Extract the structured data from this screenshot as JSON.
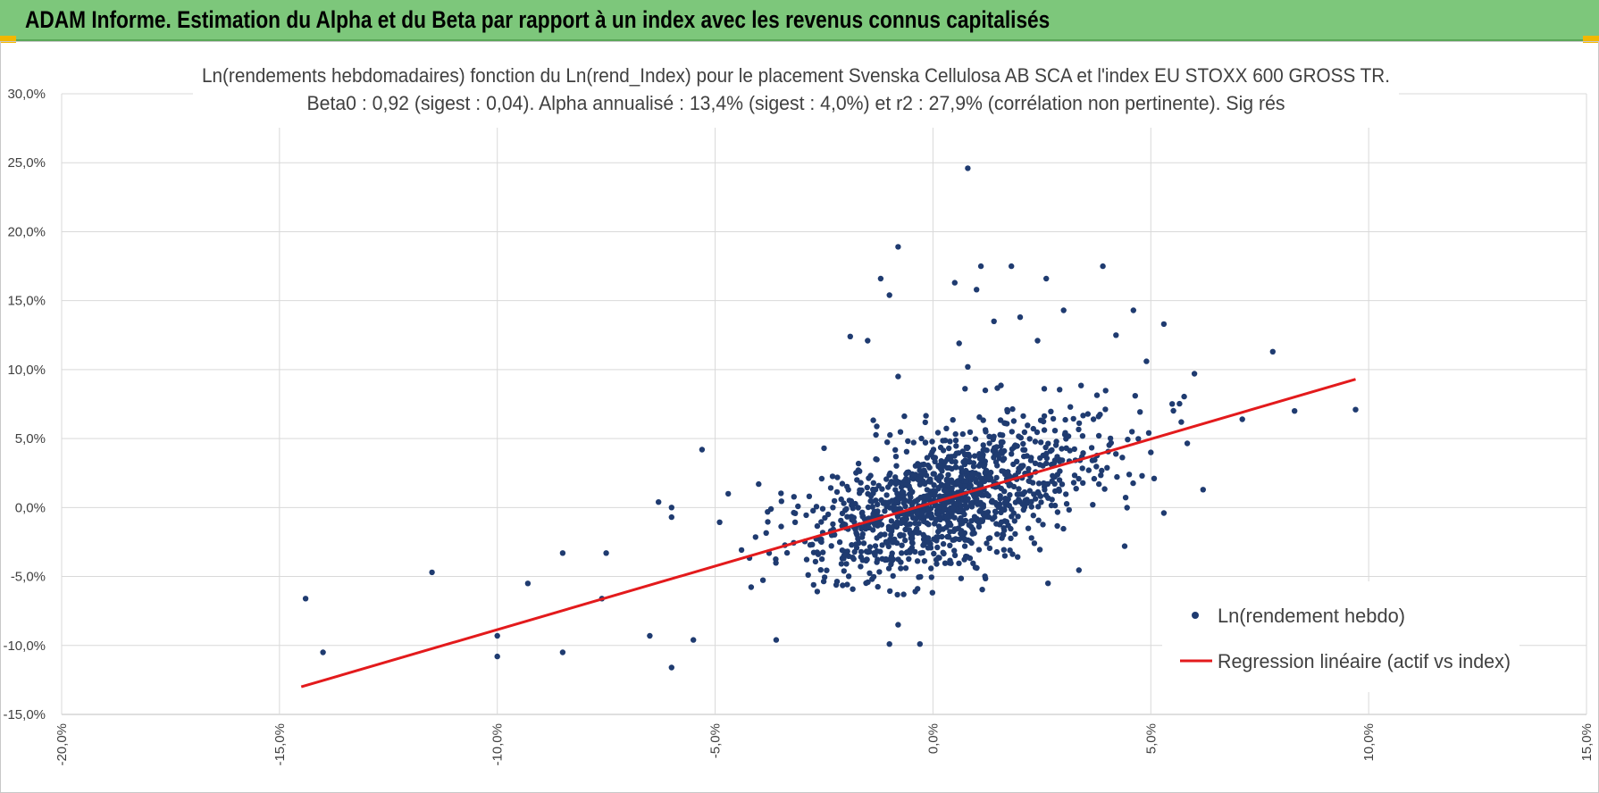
{
  "header": {
    "title": "ADAM Informe. Estimation du Alpha et du Beta par rapport à un index avec les revenus connus capitalisés"
  },
  "colors": {
    "header_bg": "#7dc77b",
    "points": "#1f3b70",
    "regression": "#e31a1c",
    "grid": "#d9d9d9",
    "text": "#404040"
  },
  "chart_data": {
    "type": "scatter",
    "title_line1": "Ln(rendements hebdomadaires) fonction du Ln(rend_Index) pour le placement Svenska Cellulosa AB SCA et l'index EU STOXX 600 GROSS TR.",
    "title_line2": "Beta0 : 0,92 (sigest : 0,04). Alpha annualisé : 13,4% (sigest : 4,0%) et r2 : 27,9% (corrélation non pertinente). Sig rés",
    "xlabel": "",
    "ylabel": "",
    "xlim": [
      -20,
      15
    ],
    "ylim": [
      -15,
      30
    ],
    "x_ticks": [
      -20,
      -15,
      -10,
      -5,
      0,
      5,
      10,
      15
    ],
    "y_ticks": [
      -15,
      -10,
      -5,
      0,
      5,
      10,
      15,
      20,
      25,
      30
    ],
    "x_tick_labels": [
      "-20,0%",
      "-15,0%",
      "-10,0%",
      "-5,0%",
      "0,0%",
      "5,0%",
      "10,0%",
      "15,0%"
    ],
    "y_tick_labels": [
      "-15,0%",
      "-10,0%",
      "-5,0%",
      "0,0%",
      "5,0%",
      "10,0%",
      "15,0%",
      "20,0%",
      "25,0%",
      "30,0%"
    ],
    "grid": true,
    "legend_position": "bottom-right",
    "legend": [
      "Ln(rendement hebdo)",
      "Regression linéaire (actif vs index)"
    ],
    "regression": {
      "slope": 0.92,
      "x": [
        -14.5,
        9.7
      ],
      "y": [
        -13.0,
        9.3
      ]
    },
    "outliers": [
      {
        "x": 0.8,
        "y": 24.6
      },
      {
        "x": -0.8,
        "y": 18.9
      },
      {
        "x": -1.2,
        "y": 16.6
      },
      {
        "x": -1.0,
        "y": 15.4
      },
      {
        "x": 0.5,
        "y": 16.3
      },
      {
        "x": 1.1,
        "y": 17.5
      },
      {
        "x": 1.8,
        "y": 17.5
      },
      {
        "x": 3.9,
        "y": 17.5
      },
      {
        "x": 2.6,
        "y": 16.6
      },
      {
        "x": 1.0,
        "y": 15.8
      },
      {
        "x": 3.0,
        "y": 14.3
      },
      {
        "x": 4.6,
        "y": 14.3
      },
      {
        "x": 5.3,
        "y": 13.3
      },
      {
        "x": 2.0,
        "y": 13.8
      },
      {
        "x": 1.4,
        "y": 13.5
      },
      {
        "x": 4.2,
        "y": 12.5
      },
      {
        "x": -1.9,
        "y": 12.4
      },
      {
        "x": -1.5,
        "y": 12.1
      },
      {
        "x": 0.6,
        "y": 11.9
      },
      {
        "x": 2.4,
        "y": 12.1
      },
      {
        "x": 7.8,
        "y": 11.3
      },
      {
        "x": 4.9,
        "y": 10.6
      },
      {
        "x": 0.8,
        "y": 10.2
      },
      {
        "x": 6.0,
        "y": 9.7
      },
      {
        "x": -0.8,
        "y": 9.5
      },
      {
        "x": 1.2,
        "y": 8.5
      },
      {
        "x": 8.3,
        "y": 7.0
      },
      {
        "x": 9.7,
        "y": 7.1
      },
      {
        "x": 7.1,
        "y": 6.4
      },
      {
        "x": 5.7,
        "y": 6.2
      },
      {
        "x": 6.2,
        "y": 1.3
      },
      {
        "x": 5.3,
        "y": -0.4
      },
      {
        "x": -14.4,
        "y": -6.6
      },
      {
        "x": -14.0,
        "y": -10.5
      },
      {
        "x": -11.5,
        "y": -4.7
      },
      {
        "x": -10.0,
        "y": -9.3
      },
      {
        "x": -10.0,
        "y": -10.8
      },
      {
        "x": -9.3,
        "y": -5.5
      },
      {
        "x": -8.5,
        "y": -3.3
      },
      {
        "x": -8.5,
        "y": -10.5
      },
      {
        "x": -7.5,
        "y": -3.3
      },
      {
        "x": -7.6,
        "y": -6.6
      },
      {
        "x": -6.5,
        "y": -9.3
      },
      {
        "x": -6.0,
        "y": -11.6
      },
      {
        "x": -6.3,
        "y": 0.4
      },
      {
        "x": -6.0,
        "y": 0.0
      },
      {
        "x": -6.0,
        "y": -0.7
      },
      {
        "x": -5.3,
        "y": 4.2
      },
      {
        "x": -5.5,
        "y": -9.6
      },
      {
        "x": -1.0,
        "y": -9.9
      },
      {
        "x": -0.3,
        "y": -9.9
      },
      {
        "x": -0.8,
        "y": -8.5
      },
      {
        "x": 4.8,
        "y": 2.3
      },
      {
        "x": 5.0,
        "y": 4.0
      },
      {
        "x": 3.8,
        "y": 6.6
      },
      {
        "x": -2.5,
        "y": 4.3
      },
      {
        "x": -4.0,
        "y": 1.7
      },
      {
        "x": -4.7,
        "y": 1.0
      },
      {
        "x": -3.6,
        "y": -9.6
      },
      {
        "x": 4.4,
        "y": -2.8
      }
    ],
    "cluster": {
      "n_points": 1200,
      "center": [
        0.3,
        0.6
      ],
      "beta": 0.92,
      "sd_x": 1.5,
      "sd_resid": 2.4
    }
  }
}
